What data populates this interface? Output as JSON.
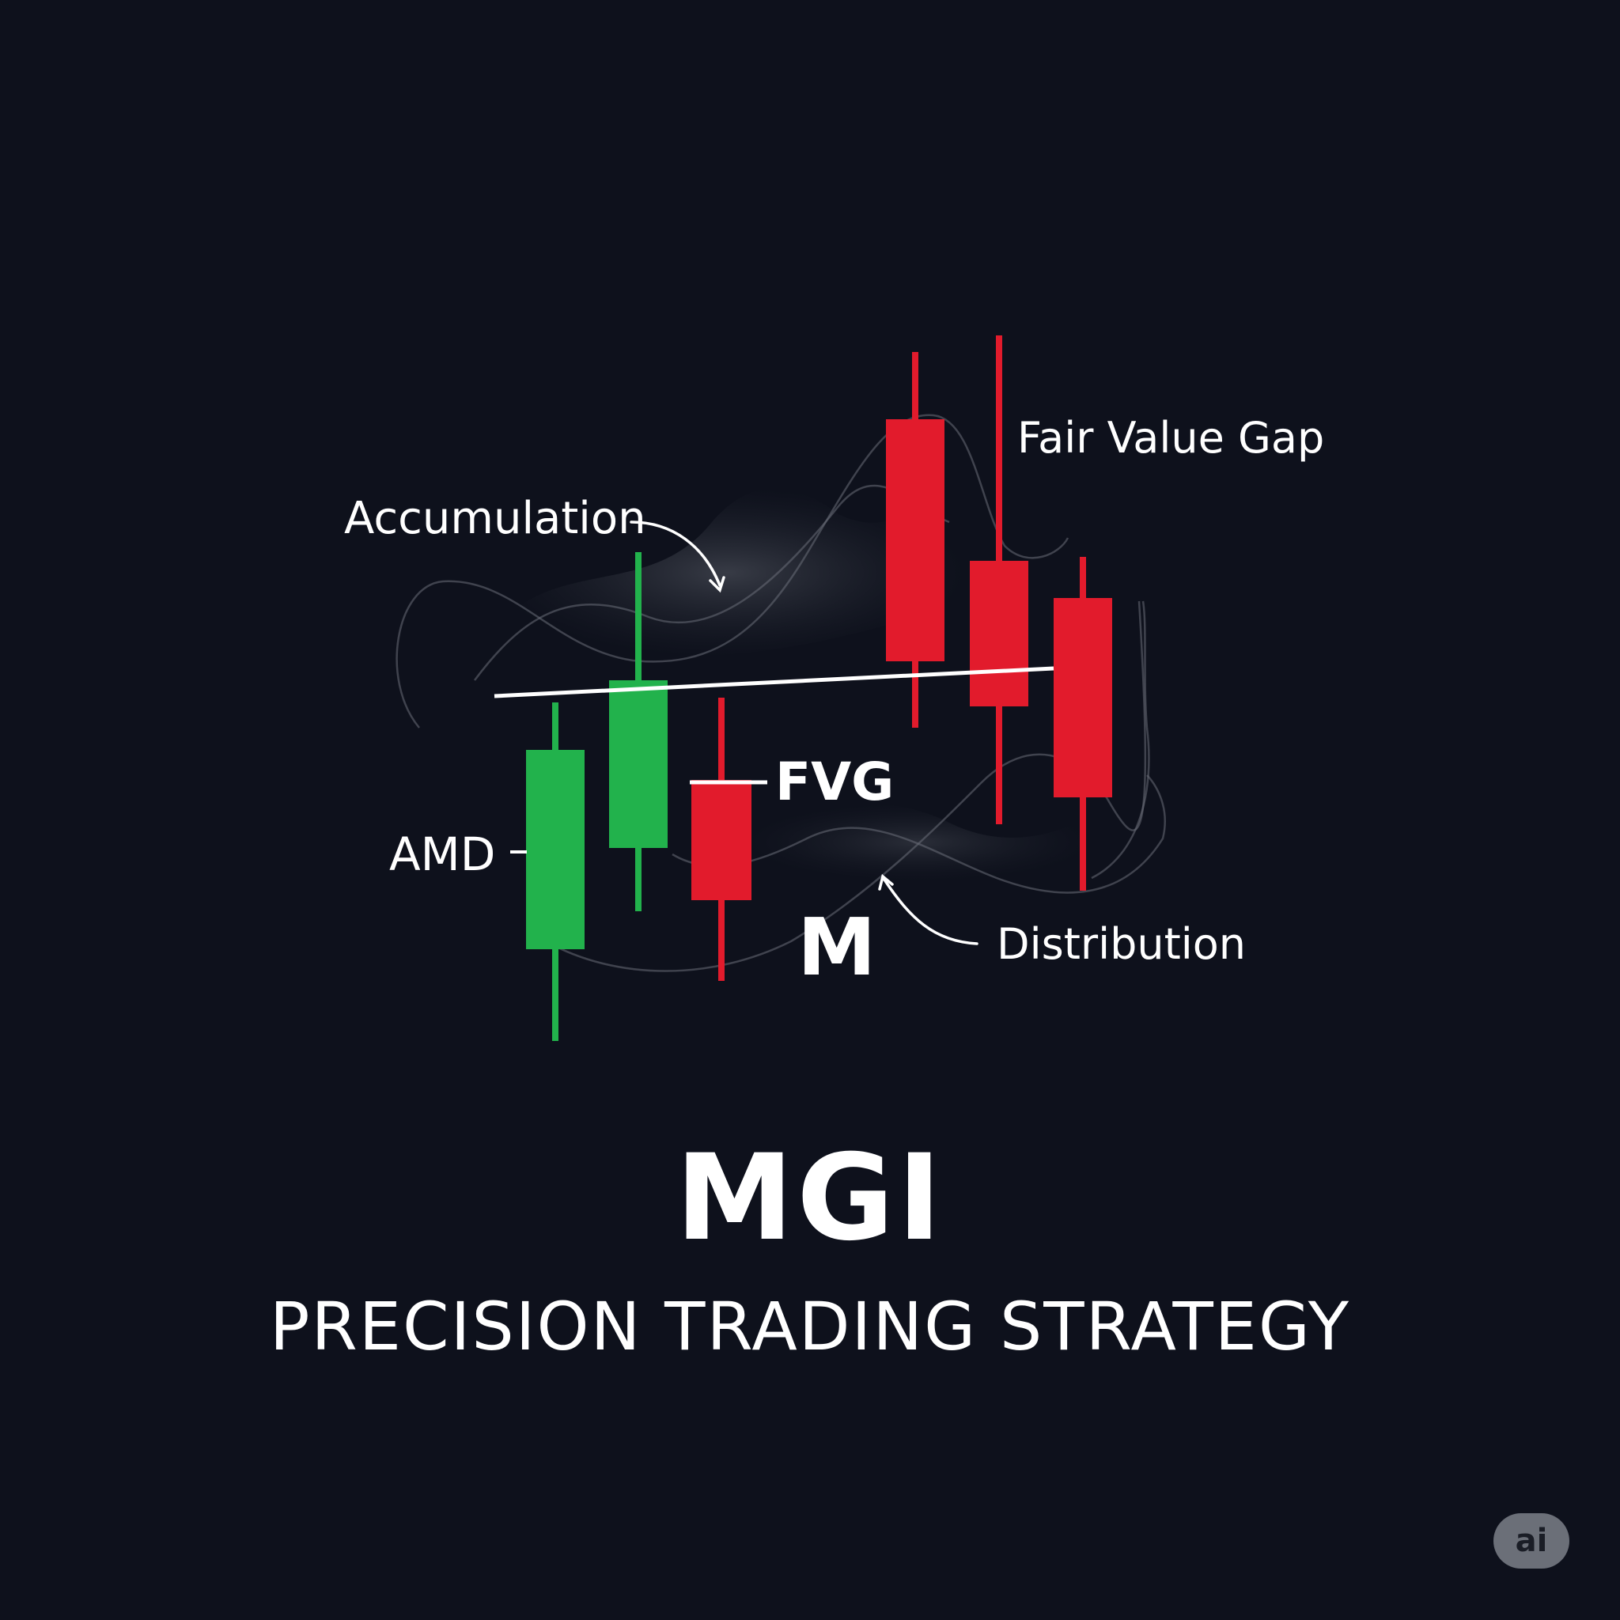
{
  "labels": {
    "fair_value_gap": "Fair Value Gap",
    "accumulation": "Accumulation",
    "fvg": "FVG",
    "amd": "AMD",
    "m_mark": "M",
    "distribution": "Distribution"
  },
  "title": "MGI",
  "subtitle": "PRECISION TRADING STRATEGY",
  "badge": "ai",
  "colors": {
    "background": "#0e111c",
    "bullish": "#22b24c",
    "bearish": "#e21b2c",
    "text": "#ffffff"
  },
  "icons": [
    "curved-arrow-icon",
    "curved-arrow-icon"
  ]
}
